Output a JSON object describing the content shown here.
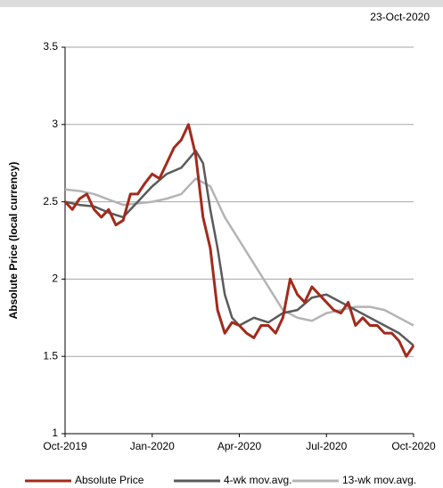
{
  "chart_data": {
    "type": "line",
    "date": "23-Oct-2020",
    "ylabel": "Absolute Price (local currency)",
    "xlim": [
      0,
      12
    ],
    "xticks": [
      {
        "value": 0,
        "label": "Oct-2019"
      },
      {
        "value": 3,
        "label": "Jan-2020"
      },
      {
        "value": 6,
        "label": "Apr-2020"
      },
      {
        "value": 9,
        "label": "Jul-2020"
      },
      {
        "value": 12,
        "label": "Oct-2020"
      }
    ],
    "ylim": [
      1,
      3.5
    ],
    "yticks": [
      1,
      1.5,
      2,
      2.5,
      3,
      3.5
    ],
    "grid": true,
    "legend": "bottom",
    "series": [
      {
        "name": "Absolute Price",
        "color": "#a32a1c",
        "x": [
          0,
          0.25,
          0.5,
          0.75,
          1,
          1.25,
          1.5,
          1.75,
          2,
          2.25,
          2.5,
          2.75,
          3,
          3.25,
          3.5,
          3.75,
          4,
          4.25,
          4.5,
          4.75,
          5,
          5.25,
          5.5,
          5.75,
          6,
          6.25,
          6.5,
          6.75,
          7,
          7.25,
          7.5,
          7.75,
          8,
          8.25,
          8.5,
          8.75,
          9,
          9.25,
          9.5,
          9.75,
          10,
          10.25,
          10.5,
          10.75,
          11,
          11.25,
          11.5,
          11.75,
          12
        ],
        "values": [
          2.5,
          2.45,
          2.52,
          2.55,
          2.45,
          2.4,
          2.45,
          2.35,
          2.38,
          2.55,
          2.55,
          2.62,
          2.68,
          2.65,
          2.75,
          2.85,
          2.9,
          3.0,
          2.8,
          2.4,
          2.2,
          1.8,
          1.65,
          1.72,
          1.7,
          1.65,
          1.62,
          1.7,
          1.7,
          1.65,
          1.75,
          2.0,
          1.9,
          1.85,
          1.95,
          1.9,
          1.85,
          1.8,
          1.78,
          1.85,
          1.7,
          1.75,
          1.7,
          1.7,
          1.65,
          1.65,
          1.6,
          1.5,
          1.57
        ]
      },
      {
        "name": "4-wk mov.avg.",
        "color": "#5a5a5a",
        "x": [
          0,
          0.5,
          1,
          1.5,
          2,
          2.5,
          3,
          3.5,
          4,
          4.5,
          4.75,
          5,
          5.25,
          5.5,
          5.75,
          6,
          6.5,
          7,
          7.5,
          8,
          8.5,
          9,
          9.5,
          10,
          10.5,
          11,
          11.5,
          12
        ],
        "values": [
          2.5,
          2.48,
          2.47,
          2.43,
          2.4,
          2.5,
          2.6,
          2.68,
          2.72,
          2.83,
          2.75,
          2.45,
          2.2,
          1.9,
          1.75,
          1.7,
          1.75,
          1.72,
          1.78,
          1.8,
          1.88,
          1.9,
          1.85,
          1.8,
          1.75,
          1.7,
          1.65,
          1.57
        ]
      },
      {
        "name": "13-wk mov.avg.",
        "color": "#b4b4b4",
        "x": [
          0,
          0.5,
          1,
          2,
          3,
          3.5,
          4,
          4.5,
          5,
          5.5,
          6,
          6.5,
          7,
          7.5,
          8,
          8.5,
          9,
          9.5,
          10,
          10.5,
          11,
          11.5,
          12
        ],
        "values": [
          2.58,
          2.57,
          2.55,
          2.48,
          2.5,
          2.52,
          2.55,
          2.65,
          2.6,
          2.4,
          2.25,
          2.1,
          1.95,
          1.8,
          1.75,
          1.73,
          1.78,
          1.8,
          1.82,
          1.82,
          1.8,
          1.75,
          1.7
        ]
      }
    ]
  }
}
